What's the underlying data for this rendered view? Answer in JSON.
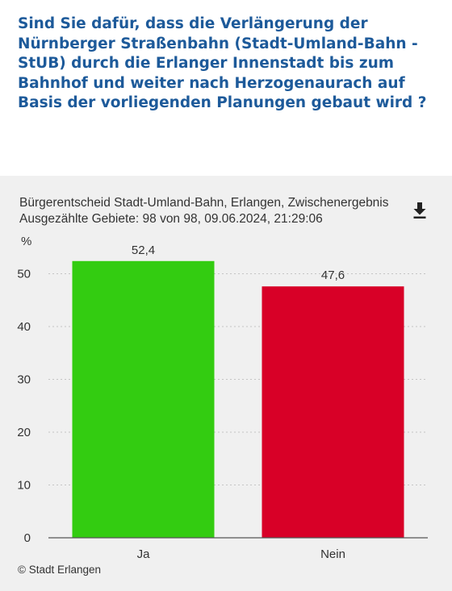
{
  "question": "Sind Sie dafür, dass die Verlängerung der Nürnberger Straßenbahn (Stadt-Umland-Bahn - StUB) durch die Erlanger Innenstadt bis zum Bahnhof und weiter nach Herzogenaurach auf Basis der vorliegenden Planungen gebaut wird ?",
  "subtitle_line1": "Bürgerentscheid Stadt-Umland-Bahn, Erlangen, Zwischenergebnis",
  "subtitle_line2": "Ausgezählte Gebiete: 98 von 98, 09.06.2024, 21:29:06",
  "download_icon": "download-icon",
  "credit": "© Stadt Erlangen",
  "colors": {
    "question": "#1d5a9a",
    "ja": "#33cc11",
    "nein": "#d80027"
  },
  "chart_data": {
    "type": "bar",
    "categories": [
      "Ja",
      "Nein"
    ],
    "values": [
      52.4,
      47.6
    ],
    "value_labels": [
      "52,4",
      "47,6"
    ],
    "ylabel": "%",
    "ylim": [
      0,
      55
    ],
    "yticks": [
      0,
      10,
      20,
      30,
      40,
      50
    ],
    "grid": true,
    "bar_colors": [
      "#33cc11",
      "#d80027"
    ]
  }
}
